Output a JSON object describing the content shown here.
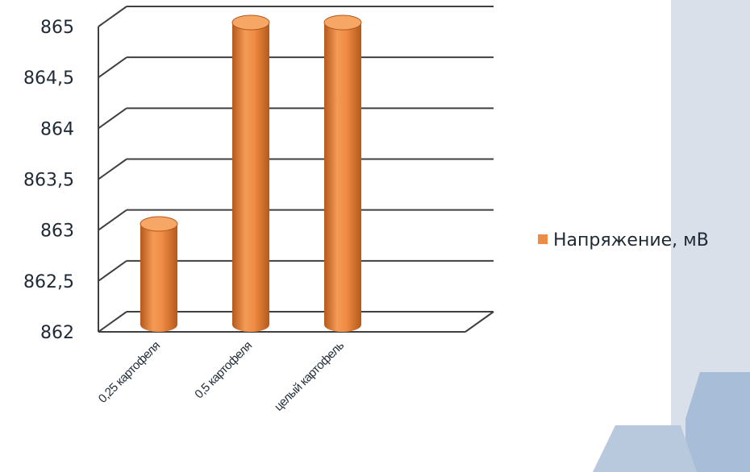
{
  "chart_data": {
    "type": "bar",
    "categories": [
      "0,25 картофеля",
      "0,5 картофеля",
      "целый картофель"
    ],
    "series": [
      {
        "name": "Напряжение, мВ",
        "values": [
          863,
          865,
          865
        ],
        "color": "#ee8b44"
      }
    ],
    "ylim": [
      862,
      865
    ],
    "yticks": [
      "862",
      "862,5",
      "863",
      "863,5",
      "864",
      "864,5",
      "865"
    ],
    "grid": true,
    "legend_position": "right",
    "bar_shape": "3d-cylinder"
  },
  "theme": {
    "bar_fill": "#ee8b44",
    "bar_dark": "#b5591b",
    "bar_top": "#f6a766",
    "gridline": "#404040",
    "panel_light": "#d9e0ea",
    "panel_blue": "#b9c9dd",
    "panel_deep": "#a7bdd8"
  }
}
